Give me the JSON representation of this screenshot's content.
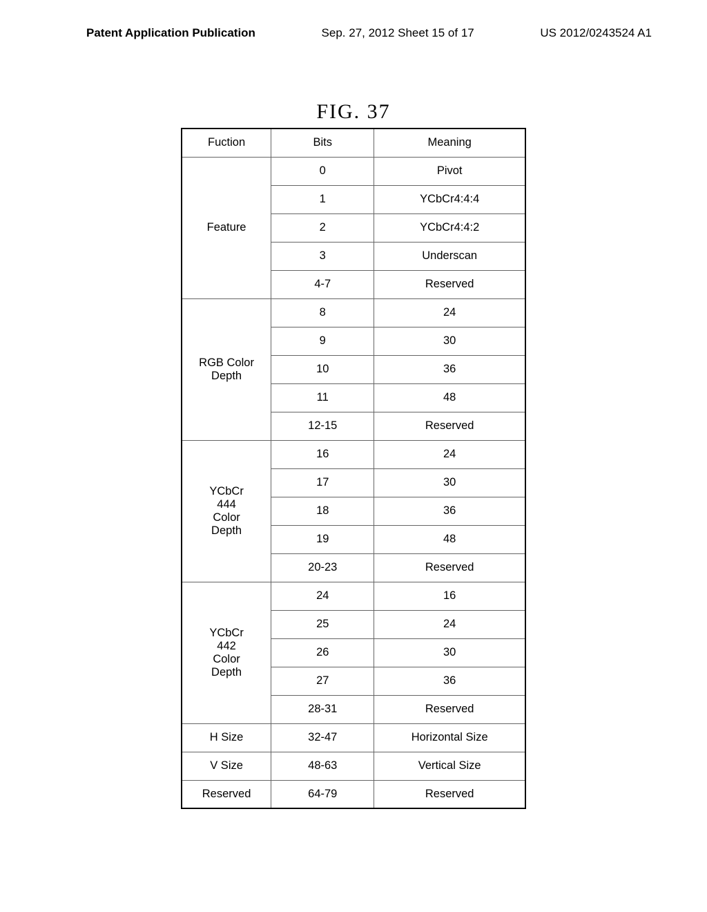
{
  "header": {
    "left": "Patent Application Publication",
    "center": "Sep. 27, 2012  Sheet 15 of 17",
    "right": "US 2012/0243524 A1"
  },
  "figure_title": "FIG.  37",
  "table": {
    "headers": {
      "function": "Fuction",
      "bits": "Bits",
      "meaning": "Meaning"
    },
    "sections": [
      {
        "function": "Feature",
        "rows": [
          {
            "bits": "0",
            "meaning": "Pivot"
          },
          {
            "bits": "1",
            "meaning": "YCbCr4:4:4"
          },
          {
            "bits": "2",
            "meaning": "YCbCr4:4:2"
          },
          {
            "bits": "3",
            "meaning": "Underscan"
          },
          {
            "bits": "4-7",
            "meaning": "Reserved"
          }
        ]
      },
      {
        "function": "RGB Color\nDepth",
        "rows": [
          {
            "bits": "8",
            "meaning": "24"
          },
          {
            "bits": "9",
            "meaning": "30"
          },
          {
            "bits": "10",
            "meaning": "36"
          },
          {
            "bits": "11",
            "meaning": "48"
          },
          {
            "bits": "12-15",
            "meaning": "Reserved"
          }
        ]
      },
      {
        "function": "YCbCr\n444\nColor\nDepth",
        "rows": [
          {
            "bits": "16",
            "meaning": "24"
          },
          {
            "bits": "17",
            "meaning": "30"
          },
          {
            "bits": "18",
            "meaning": "36"
          },
          {
            "bits": "19",
            "meaning": "48"
          },
          {
            "bits": "20-23",
            "meaning": "Reserved"
          }
        ]
      },
      {
        "function": "YCbCr\n442\nColor\nDepth",
        "rows": [
          {
            "bits": "24",
            "meaning": "16"
          },
          {
            "bits": "25",
            "meaning": "24"
          },
          {
            "bits": "26",
            "meaning": "30"
          },
          {
            "bits": "27",
            "meaning": "36"
          },
          {
            "bits": "28-31",
            "meaning": "Reserved"
          }
        ]
      },
      {
        "function": "H Size",
        "rows": [
          {
            "bits": "32-47",
            "meaning": "Horizontal Size"
          }
        ]
      },
      {
        "function": "V Size",
        "rows": [
          {
            "bits": "48-63",
            "meaning": "Vertical Size"
          }
        ]
      },
      {
        "function": "Reserved",
        "rows": [
          {
            "bits": "64-79",
            "meaning": "Reserved"
          }
        ]
      }
    ]
  }
}
